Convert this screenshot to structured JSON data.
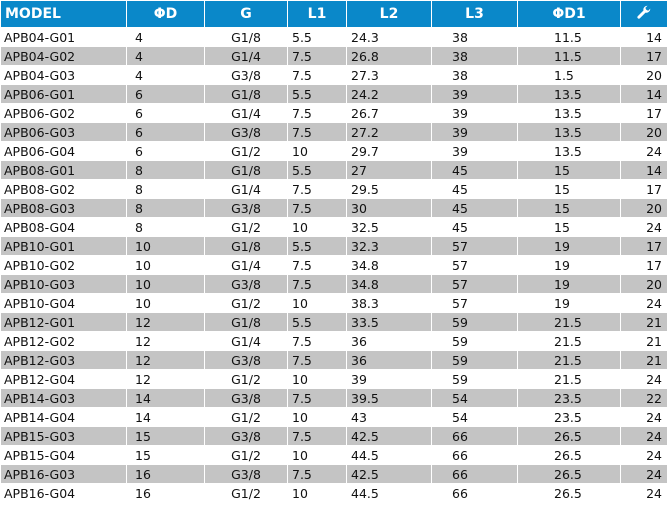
{
  "table": {
    "headers": [
      "MODEL",
      "ΦD",
      "G",
      "L1",
      "L2",
      "L3",
      "ΦD1"
    ],
    "last_header_icon": "wrench-icon",
    "accent_color": "#0a88c9",
    "stripe_color": "#c4c4c4",
    "rows": [
      [
        "APB04-G01",
        "4",
        "G1/8",
        "5.5",
        "24.3",
        "38",
        "11.5",
        "14"
      ],
      [
        "APB04-G02",
        "4",
        "G1/4",
        "7.5",
        "26.8",
        "38",
        "11.5",
        "17"
      ],
      [
        "APB04-G03",
        "4",
        "G3/8",
        "7.5",
        "27.3",
        "38",
        "1.5",
        "20"
      ],
      [
        "APB06-G01",
        "6",
        "G1/8",
        "5.5",
        "24.2",
        "39",
        "13.5",
        "14"
      ],
      [
        "APB06-G02",
        "6",
        "G1/4",
        "7.5",
        "26.7",
        "39",
        "13.5",
        "17"
      ],
      [
        "APB06-G03",
        "6",
        "G3/8",
        "7.5",
        "27.2",
        "39",
        "13.5",
        "20"
      ],
      [
        "APB06-G04",
        "6",
        "G1/2",
        "10",
        "29.7",
        "39",
        "13.5",
        "24"
      ],
      [
        "APB08-G01",
        "8",
        "G1/8",
        "5.5",
        "27",
        "45",
        "15",
        "14"
      ],
      [
        "APB08-G02",
        "8",
        "G1/4",
        "7.5",
        "29.5",
        "45",
        "15",
        "17"
      ],
      [
        "APB08-G03",
        "8",
        "G3/8",
        "7.5",
        "30",
        "45",
        "15",
        "20"
      ],
      [
        "APB08-G04",
        "8",
        "G1/2",
        "10",
        "32.5",
        "45",
        "15",
        "24"
      ],
      [
        "APB10-G01",
        "10",
        "G1/8",
        "5.5",
        "32.3",
        "57",
        "19",
        "17"
      ],
      [
        "APB10-G02",
        "10",
        "G1/4",
        "7.5",
        "34.8",
        "57",
        "19",
        "17"
      ],
      [
        "APB10-G03",
        "10",
        "G3/8",
        "7.5",
        "34.8",
        "57",
        "19",
        "20"
      ],
      [
        "APB10-G04",
        "10",
        "G1/2",
        "10",
        "38.3",
        "57",
        "19",
        "24"
      ],
      [
        "APB12-G01",
        "12",
        "G1/8",
        "5.5",
        "33.5",
        "59",
        "21.5",
        "21"
      ],
      [
        "APB12-G02",
        "12",
        "G1/4",
        "7.5",
        "36",
        "59",
        "21.5",
        "21"
      ],
      [
        "APB12-G03",
        "12",
        "G3/8",
        "7.5",
        "36",
        "59",
        "21.5",
        "21"
      ],
      [
        "APB12-G04",
        "12",
        "G1/2",
        "10",
        "39",
        "59",
        "21.5",
        "24"
      ],
      [
        "APB14-G03",
        "14",
        "G3/8",
        "7.5",
        "39.5",
        "54",
        "23.5",
        "22"
      ],
      [
        "APB14-G04",
        "14",
        "G1/2",
        "10",
        "43",
        "54",
        "23.5",
        "24"
      ],
      [
        "APB15-G03",
        "15",
        "G3/8",
        "7.5",
        "42.5",
        "66",
        "26.5",
        "24"
      ],
      [
        "APB15-G04",
        "15",
        "G1/2",
        "10",
        "44.5",
        "66",
        "26.5",
        "24"
      ],
      [
        "APB16-G03",
        "16",
        "G3/8",
        "7.5",
        "42.5",
        "66",
        "26.5",
        "24"
      ],
      [
        "APB16-G04",
        "16",
        "G1/2",
        "10",
        "44.5",
        "66",
        "26.5",
        "24"
      ]
    ]
  }
}
